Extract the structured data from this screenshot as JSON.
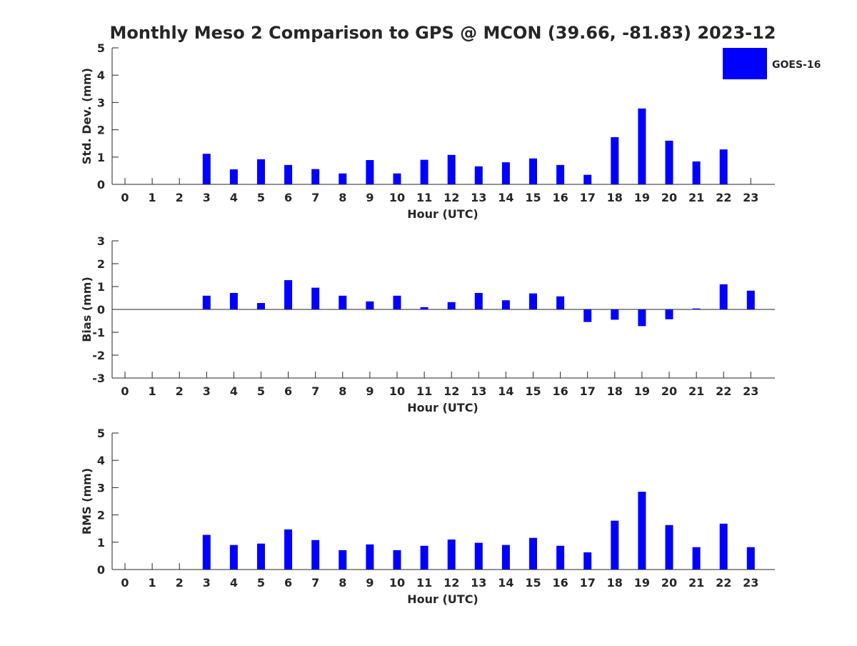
{
  "title": "Monthly Meso 2 Comparison to GPS @ MCON (39.66, -81.83) 2023-12",
  "legend": {
    "label": "GOES-16",
    "color": "#0000ff",
    "placement": "top-right"
  },
  "colors": {
    "bar": "#0000ff",
    "axis": "#262626"
  },
  "chart_data": [
    {
      "type": "bar",
      "ylabel": "Std. Dev. (mm)",
      "xlabel": "Hour (UTC)",
      "ylim": [
        0,
        5
      ],
      "yticks": [
        0,
        1,
        2,
        3,
        4,
        5
      ],
      "categories": [
        "0",
        "1",
        "2",
        "3",
        "4",
        "5",
        "6",
        "7",
        "8",
        "9",
        "10",
        "11",
        "12",
        "13",
        "14",
        "15",
        "16",
        "17",
        "18",
        "19",
        "20",
        "21",
        "22",
        "23"
      ],
      "series": [
        {
          "name": "GOES-16",
          "values": [
            null,
            null,
            null,
            1.12,
            0.55,
            0.92,
            0.71,
            0.56,
            0.4,
            0.89,
            0.4,
            0.9,
            1.08,
            0.66,
            0.81,
            0.95,
            0.71,
            0.35,
            1.73,
            2.78,
            1.6,
            0.84,
            1.28,
            null
          ]
        }
      ]
    },
    {
      "type": "bar",
      "ylabel": "Bias (mm)",
      "xlabel": "Hour (UTC)",
      "ylim": [
        -3,
        3
      ],
      "yticks": [
        -3,
        -2,
        -1,
        0,
        1,
        2,
        3
      ],
      "categories": [
        "0",
        "1",
        "2",
        "3",
        "4",
        "5",
        "6",
        "7",
        "8",
        "9",
        "10",
        "11",
        "12",
        "13",
        "14",
        "15",
        "16",
        "17",
        "18",
        "19",
        "20",
        "21",
        "22",
        "23"
      ],
      "series": [
        {
          "name": "GOES-16",
          "values": [
            null,
            null,
            null,
            0.6,
            0.72,
            0.28,
            1.28,
            0.95,
            0.6,
            0.35,
            0.6,
            0.1,
            0.32,
            0.72,
            0.4,
            0.7,
            0.57,
            -0.55,
            -0.45,
            -0.73,
            -0.43,
            0.04,
            1.1,
            0.82
          ]
        }
      ]
    },
    {
      "type": "bar",
      "ylabel": "RMS (mm)",
      "xlabel": "Hour (UTC)",
      "ylim": [
        0,
        5
      ],
      "yticks": [
        0,
        1,
        2,
        3,
        4,
        5
      ],
      "categories": [
        "0",
        "1",
        "2",
        "3",
        "4",
        "5",
        "6",
        "7",
        "8",
        "9",
        "10",
        "11",
        "12",
        "13",
        "14",
        "15",
        "16",
        "17",
        "18",
        "19",
        "20",
        "21",
        "22",
        "23"
      ],
      "series": [
        {
          "name": "GOES-16",
          "values": [
            null,
            null,
            null,
            1.27,
            0.9,
            0.95,
            1.47,
            1.08,
            0.71,
            0.92,
            0.71,
            0.87,
            1.1,
            0.98,
            0.9,
            1.16,
            0.87,
            0.63,
            1.79,
            2.85,
            1.63,
            0.82,
            1.68,
            0.82
          ]
        }
      ]
    }
  ]
}
